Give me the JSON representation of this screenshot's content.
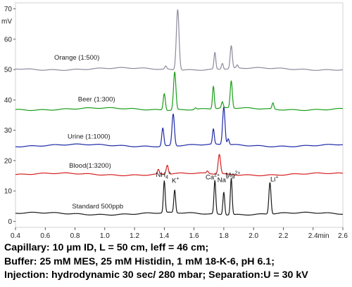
{
  "chart_data": {
    "type": "line",
    "ylabel": "mV",
    "xlabel": "min",
    "xlim": [
      0.4,
      2.6
    ],
    "ylim": [
      -2,
      72
    ],
    "x_ticks": [
      "0.4",
      "0.6",
      "0.8",
      "1.0",
      "1.2",
      "1.4",
      "1.6",
      "1.8",
      "2.0",
      "2.2",
      "2.4",
      "2.6"
    ],
    "y_ticks": [
      "0",
      "10",
      "20",
      "30",
      "40",
      "50",
      "60",
      "70"
    ],
    "y_tick_values": [
      0,
      10,
      20,
      30,
      40,
      50,
      60,
      70
    ],
    "x_tick_values": [
      0.4,
      0.6,
      0.8,
      1.0,
      1.2,
      1.4,
      1.6,
      1.8,
      2.0,
      2.2,
      2.4,
      2.6
    ],
    "x_unit_label": "min",
    "y_unit_label": "mV",
    "series": [
      {
        "name": "Orange  (1:500)",
        "color": "#8e8a9c",
        "baseline": 50.2,
        "label_x": 0.66,
        "label_y": 53.3,
        "peaks": [
          [
            1.41,
            1.0,
            0.006
          ],
          [
            1.49,
            20.0,
            0.009
          ],
          [
            1.74,
            5.5,
            0.006
          ],
          [
            1.79,
            2.0,
            0.006
          ],
          [
            1.85,
            7.5,
            0.007
          ],
          [
            1.89,
            1.0,
            0.006
          ]
        ]
      },
      {
        "name": "Beer (1:300)",
        "color": "#1a9e1a",
        "baseline": 37.0,
        "label_x": 0.82,
        "label_y": 39.5,
        "peaks": [
          [
            1.4,
            5.5,
            0.007
          ],
          [
            1.47,
            12.5,
            0.008
          ],
          [
            1.61,
            0.5,
            0.006
          ],
          [
            1.73,
            7.5,
            0.006
          ],
          [
            1.79,
            2.0,
            0.006
          ],
          [
            1.85,
            9.0,
            0.007
          ],
          [
            2.13,
            2.0,
            0.006
          ]
        ]
      },
      {
        "name": "Urine (1:1000)",
        "color": "#1f2aa8",
        "baseline": 25.0,
        "label_x": 0.75,
        "label_y": 27.3,
        "peaks": [
          [
            1.39,
            6.0,
            0.007
          ],
          [
            1.46,
            10.5,
            0.008
          ],
          [
            1.73,
            5.0,
            0.006
          ],
          [
            1.8,
            12.5,
            0.008
          ],
          [
            1.83,
            2.0,
            0.006
          ]
        ]
      },
      {
        "name": "Blood(1:3200)",
        "color": "#d62020",
        "baseline": 15.5,
        "label_x": 0.76,
        "label_y": 17.6,
        "peaks": [
          [
            1.36,
            1.5,
            0.006
          ],
          [
            1.42,
            3.0,
            0.007
          ],
          [
            1.69,
            0.8,
            0.006
          ],
          [
            1.77,
            6.5,
            0.008
          ]
        ]
      },
      {
        "name": "Standard 500ppb",
        "color": "#1a1a1a",
        "baseline": 2.5,
        "label_x": 0.78,
        "label_y": 4.2,
        "peaks": [
          [
            1.4,
            10.5,
            0.006
          ],
          [
            1.47,
            7.5,
            0.006
          ],
          [
            1.74,
            11.0,
            0.006
          ],
          [
            1.8,
            7.5,
            0.006
          ],
          [
            1.85,
            12.0,
            0.006
          ],
          [
            2.11,
            10.5,
            0.007
          ]
        ]
      }
    ],
    "annotations": [
      {
        "text": "NH",
        "sub": "4",
        "sup": "+",
        "x": 1.395,
        "y": 14.6
      },
      {
        "text": "K",
        "sub": "",
        "sup": "+",
        "x": 1.475,
        "y": 12.7
      },
      {
        "text": "Ca",
        "sub": "",
        "sup": "2+",
        "x": 1.725,
        "y": 13.8
      },
      {
        "text": "Na",
        "sub": "",
        "sup": "+",
        "x": 1.795,
        "y": 12.9
      },
      {
        "text": "Mg",
        "sub": "",
        "sup": "2+",
        "x": 1.862,
        "y": 14.5
      },
      {
        "text": "Li",
        "sub": "",
        "sup": "+",
        "x": 2.14,
        "y": 13.2
      }
    ]
  },
  "caption": {
    "line1": "Capillary: 10 µm ID, L = 50 cm, leff = 46 cm;",
    "line2": "Buffer: 25 mM MES, 25 mM Histidin, 1 mM 18-K-6, pH 6.1;",
    "line3": "Injection: hydrodynamic 30 sec/ 280 mbar; Separation:U = 30 kV"
  }
}
